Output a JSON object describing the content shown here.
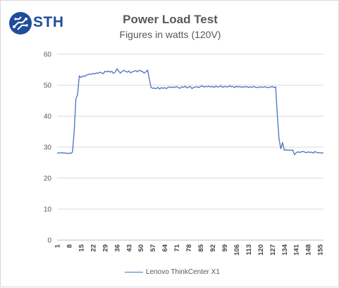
{
  "logo": {
    "text": "STH"
  },
  "chart_data": {
    "type": "line",
    "title": "Power Load Test",
    "subtitle": "Figures in watts (120V)",
    "xlabel": "",
    "ylabel": "",
    "ylim": [
      0,
      60
    ],
    "yticks": [
      0,
      10,
      20,
      30,
      40,
      50,
      60
    ],
    "grid": true,
    "legend_position": "bottom",
    "x_tick_labels": [
      "1",
      "8",
      "15",
      "22",
      "29",
      "36",
      "43",
      "50",
      "57",
      "64",
      "71",
      "78",
      "85",
      "92",
      "99",
      "106",
      "113",
      "120",
      "127",
      "134",
      "141",
      "148",
      "155"
    ],
    "x_range": [
      1,
      157
    ],
    "series": [
      {
        "name": "Lenovo ThinkCenter X1",
        "color": "#4472c4",
        "points": [
          [
            1,
            28.0
          ],
          [
            2,
            28.2
          ],
          [
            3,
            28.1
          ],
          [
            4,
            28.3
          ],
          [
            5,
            28.0
          ],
          [
            6,
            28.2
          ],
          [
            7,
            27.9
          ],
          [
            8,
            28.1
          ],
          [
            9,
            28.0
          ],
          [
            10,
            28.4
          ],
          [
            11,
            35.0
          ],
          [
            12,
            45.5
          ],
          [
            13,
            47.0
          ],
          [
            14,
            53.0
          ],
          [
            15,
            52.5
          ],
          [
            16,
            53.0
          ],
          [
            17,
            52.8
          ],
          [
            18,
            53.2
          ],
          [
            19,
            53.4
          ],
          [
            20,
            53.6
          ],
          [
            21,
            53.5
          ],
          [
            22,
            53.8
          ],
          [
            23,
            53.6
          ],
          [
            24,
            54.0
          ],
          [
            25,
            53.8
          ],
          [
            26,
            54.2
          ],
          [
            27,
            54.0
          ],
          [
            28,
            53.7
          ],
          [
            29,
            54.5
          ],
          [
            30,
            54.3
          ],
          [
            31,
            54.6
          ],
          [
            32,
            54.2
          ],
          [
            33,
            54.5
          ],
          [
            34,
            53.8
          ],
          [
            35,
            54.2
          ],
          [
            36,
            55.3
          ],
          [
            37,
            54.6
          ],
          [
            38,
            53.9
          ],
          [
            39,
            54.4
          ],
          [
            40,
            54.8
          ],
          [
            41,
            54.5
          ],
          [
            42,
            54.2
          ],
          [
            43,
            54.6
          ],
          [
            44,
            54.0
          ],
          [
            45,
            54.3
          ],
          [
            46,
            54.5
          ],
          [
            47,
            54.7
          ],
          [
            48,
            54.3
          ],
          [
            49,
            54.8
          ],
          [
            50,
            54.6
          ],
          [
            51,
            54.4
          ],
          [
            52,
            53.9
          ],
          [
            53,
            54.3
          ],
          [
            54,
            54.9
          ],
          [
            55,
            52.0
          ],
          [
            56,
            49.3
          ],
          [
            57,
            49.0
          ],
          [
            58,
            49.1
          ],
          [
            59,
            48.9
          ],
          [
            60,
            49.3
          ],
          [
            61,
            48.8
          ],
          [
            62,
            49.2
          ],
          [
            63,
            49.0
          ],
          [
            64,
            49.2
          ],
          [
            65,
            48.9
          ],
          [
            66,
            49.3
          ],
          [
            67,
            49.5
          ],
          [
            68,
            49.2
          ],
          [
            69,
            49.4
          ],
          [
            70,
            49.3
          ],
          [
            71,
            49.6
          ],
          [
            72,
            49.2
          ],
          [
            73,
            49.0
          ],
          [
            74,
            49.5
          ],
          [
            75,
            49.3
          ],
          [
            76,
            49.7
          ],
          [
            77,
            49.1
          ],
          [
            78,
            49.4
          ],
          [
            79,
            49.6
          ],
          [
            80,
            48.9
          ],
          [
            81,
            49.3
          ],
          [
            82,
            49.4
          ],
          [
            83,
            49.5
          ],
          [
            84,
            49.2
          ],
          [
            85,
            49.6
          ],
          [
            86,
            49.8
          ],
          [
            87,
            49.4
          ],
          [
            88,
            49.6
          ],
          [
            89,
            49.5
          ],
          [
            90,
            49.7
          ],
          [
            91,
            49.4
          ],
          [
            92,
            49.6
          ],
          [
            93,
            49.3
          ],
          [
            94,
            49.7
          ],
          [
            95,
            49.4
          ],
          [
            96,
            49.5
          ],
          [
            97,
            49.8
          ],
          [
            98,
            49.3
          ],
          [
            99,
            49.6
          ],
          [
            100,
            49.5
          ],
          [
            101,
            49.4
          ],
          [
            102,
            49.8
          ],
          [
            103,
            49.5
          ],
          [
            104,
            49.6
          ],
          [
            105,
            49.2
          ],
          [
            106,
            49.7
          ],
          [
            107,
            49.4
          ],
          [
            108,
            49.6
          ],
          [
            109,
            49.3
          ],
          [
            110,
            49.5
          ],
          [
            111,
            49.4
          ],
          [
            112,
            49.6
          ],
          [
            113,
            49.2
          ],
          [
            114,
            49.5
          ],
          [
            115,
            49.3
          ],
          [
            116,
            49.6
          ],
          [
            117,
            49.4
          ],
          [
            118,
            49.2
          ],
          [
            119,
            49.3
          ],
          [
            120,
            49.5
          ],
          [
            121,
            49.3
          ],
          [
            122,
            49.4
          ],
          [
            123,
            49.5
          ],
          [
            124,
            49.2
          ],
          [
            125,
            49.3
          ],
          [
            126,
            49.4
          ],
          [
            127,
            49.6
          ],
          [
            128,
            49.2
          ],
          [
            129,
            49.5
          ],
          [
            130,
            40.0
          ],
          [
            131,
            32.5
          ],
          [
            132,
            29.5
          ],
          [
            133,
            31.5
          ],
          [
            134,
            29.0
          ],
          [
            135,
            29.2
          ],
          [
            136,
            29.0
          ],
          [
            137,
            29.1
          ],
          [
            138,
            29.0
          ],
          [
            139,
            29.1
          ],
          [
            140,
            27.6
          ],
          [
            141,
            28.2
          ],
          [
            142,
            28.5
          ],
          [
            143,
            28.3
          ],
          [
            144,
            28.5
          ],
          [
            145,
            28.6
          ],
          [
            146,
            28.4
          ],
          [
            147,
            28.2
          ],
          [
            148,
            28.5
          ],
          [
            149,
            28.3
          ],
          [
            150,
            28.4
          ],
          [
            151,
            28.1
          ],
          [
            152,
            28.6
          ],
          [
            153,
            28.3
          ],
          [
            154,
            28.2
          ],
          [
            155,
            28.2
          ],
          [
            156,
            28.1
          ],
          [
            157,
            28.2
          ]
        ]
      }
    ]
  }
}
